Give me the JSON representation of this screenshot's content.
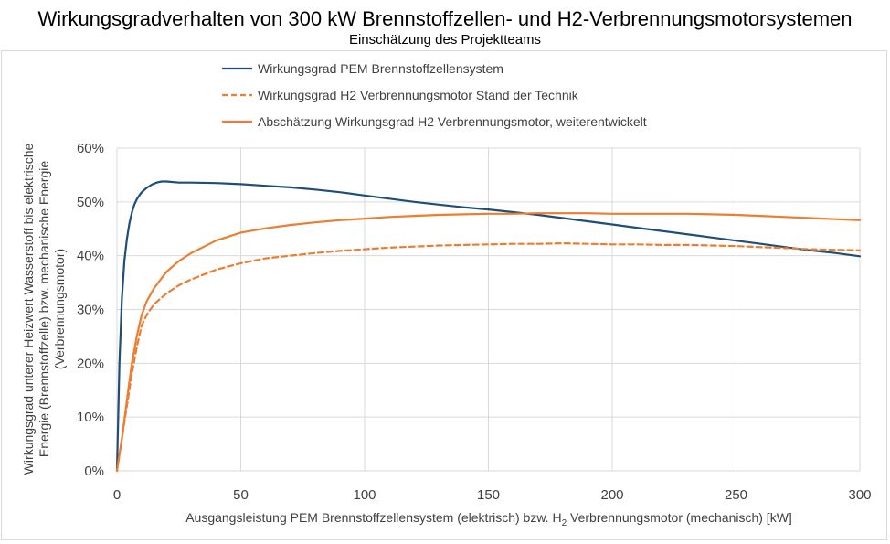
{
  "chart_data": {
    "type": "line",
    "title": "Wirkungsgradverhalten von 300 kW Brennstoffzellen- und H2-Verbrennungsmotorsystemen",
    "subtitle": "Einschätzung des Projektteams",
    "xlabel_main": "Ausgangsleistung PEM Brennstoffzellensystem (elektrisch) bzw. H",
    "xlabel_sub": "2",
    "xlabel_tail": " Verbrennungsmotor (mechanisch) [kW]",
    "ylabel_lines": [
      "Wirkungsgrad unterer Heizwert Wasserstoff bis elektrische",
      "Energie (Brennstoffzelle) bzw. mechanische Energie",
      "(Verbrennungsmotor)"
    ],
    "xlim": [
      0,
      300
    ],
    "ylim": [
      0,
      0.6
    ],
    "x_ticks": [
      {
        "value": 0,
        "label": "0"
      },
      {
        "value": 50,
        "label": "50"
      },
      {
        "value": 100,
        "label": "100"
      },
      {
        "value": 150,
        "label": "150"
      },
      {
        "value": 200,
        "label": "200"
      },
      {
        "value": 250,
        "label": "250"
      },
      {
        "value": 300,
        "label": "300"
      }
    ],
    "y_ticks": [
      {
        "value": 0,
        "label": "0%"
      },
      {
        "value": 0.1,
        "label": "10%"
      },
      {
        "value": 0.2,
        "label": "20%"
      },
      {
        "value": 0.3,
        "label": "30%"
      },
      {
        "value": 0.4,
        "label": "40%"
      },
      {
        "value": 0.5,
        "label": "50%"
      },
      {
        "value": 0.6,
        "label": "60%"
      }
    ],
    "grid": "vertical and horizontal",
    "legend_position": "top",
    "series": [
      {
        "name": "Wirkungsgrad PEM Brennstoffzellensystem",
        "color": "#1f4e79",
        "dash": "solid",
        "x": [
          0,
          1,
          2,
          3,
          4,
          5,
          6,
          7,
          8,
          9,
          10,
          12,
          14,
          16,
          18,
          20,
          25,
          30,
          40,
          50,
          60,
          70,
          80,
          90,
          100,
          110,
          120,
          130,
          140,
          150,
          160,
          170,
          180,
          190,
          200,
          210,
          220,
          230,
          240,
          250,
          260,
          270,
          280,
          290,
          300
        ],
        "y": [
          0.0,
          0.2,
          0.32,
          0.39,
          0.43,
          0.46,
          0.48,
          0.495,
          0.505,
          0.512,
          0.518,
          0.526,
          0.532,
          0.536,
          0.538,
          0.538,
          0.536,
          0.536,
          0.535,
          0.533,
          0.53,
          0.527,
          0.523,
          0.518,
          0.512,
          0.506,
          0.5,
          0.495,
          0.49,
          0.486,
          0.481,
          0.476,
          0.47,
          0.464,
          0.458,
          0.452,
          0.446,
          0.44,
          0.434,
          0.428,
          0.422,
          0.416,
          0.41,
          0.405,
          0.399
        ]
      },
      {
        "name": "Wirkungsgrad H2 Verbrennungsmotor Stand der Technik",
        "color": "#ed7d31",
        "dash": "dashed",
        "x": [
          0,
          2,
          4,
          6,
          8,
          10,
          12,
          15,
          20,
          25,
          30,
          40,
          50,
          60,
          70,
          80,
          90,
          100,
          110,
          120,
          130,
          140,
          150,
          160,
          170,
          180,
          190,
          200,
          210,
          220,
          230,
          240,
          250,
          260,
          270,
          280,
          290,
          300
        ],
        "y": [
          0.0,
          0.06,
          0.12,
          0.18,
          0.23,
          0.27,
          0.29,
          0.31,
          0.33,
          0.345,
          0.356,
          0.374,
          0.386,
          0.395,
          0.4,
          0.405,
          0.409,
          0.412,
          0.415,
          0.417,
          0.419,
          0.42,
          0.421,
          0.422,
          0.422,
          0.423,
          0.422,
          0.421,
          0.421,
          0.42,
          0.42,
          0.419,
          0.418,
          0.416,
          0.414,
          0.412,
          0.411,
          0.41
        ]
      },
      {
        "name": "Abschätzung Wirkungsgrad H2 Verbrennungsmotor, weiterentwickelt",
        "color": "#ed7d31",
        "dash": "solid",
        "x": [
          0,
          2,
          4,
          6,
          8,
          10,
          12,
          15,
          20,
          25,
          30,
          40,
          50,
          60,
          70,
          80,
          90,
          100,
          110,
          120,
          130,
          140,
          150,
          160,
          170,
          180,
          190,
          200,
          210,
          220,
          230,
          240,
          250,
          260,
          270,
          280,
          290,
          300
        ],
        "y": [
          0.0,
          0.06,
          0.13,
          0.2,
          0.25,
          0.29,
          0.315,
          0.34,
          0.37,
          0.39,
          0.405,
          0.428,
          0.443,
          0.451,
          0.457,
          0.462,
          0.466,
          0.469,
          0.472,
          0.474,
          0.476,
          0.477,
          0.478,
          0.478,
          0.479,
          0.479,
          0.479,
          0.478,
          0.478,
          0.478,
          0.478,
          0.477,
          0.476,
          0.474,
          0.472,
          0.47,
          0.468,
          0.466
        ]
      }
    ]
  }
}
